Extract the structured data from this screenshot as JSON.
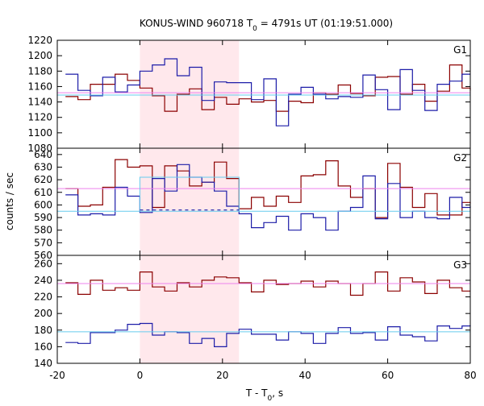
{
  "title": {
    "main": "KONUS-WIND 960718 T",
    "sub": "0",
    "rest": " = 4791s UT (01:19:51.000)"
  },
  "xlabel": {
    "main": "T - T",
    "sub": "0",
    "rest": ", s"
  },
  "ylabel": "counts / sec",
  "colors": {
    "series_red": "#8b0000",
    "series_blue": "#1c1ca8",
    "bg_red": "#ee82ee",
    "bg_blue": "#66ccee",
    "highlight": "#ffe8ec",
    "burst_bg": "#66ccee"
  },
  "chart_data": {
    "type": "line",
    "step": "post",
    "bin_edges": [
      -18,
      -15,
      -12,
      -9,
      -6,
      -3,
      0,
      3,
      6,
      9,
      12,
      15,
      18,
      21,
      24,
      27,
      30,
      33,
      36,
      39,
      42,
      45,
      48,
      51,
      54,
      57,
      60,
      63,
      66,
      69,
      72,
      75,
      78,
      80
    ],
    "xlim": [
      -20,
      80
    ],
    "xticks": [
      -20,
      0,
      20,
      40,
      60,
      80
    ],
    "highlight_interval": [
      0,
      24
    ],
    "panels": [
      {
        "label": "G1",
        "ylim": [
          1080,
          1220
        ],
        "yticks": [
          1080,
          1100,
          1120,
          1140,
          1160,
          1180,
          1200,
          1220
        ],
        "series": [
          {
            "color_key": "series_red",
            "values": [
              1147,
              1143,
              1163,
              1163,
              1176,
              1168,
              1158,
              1148,
              1128,
              1150,
              1157,
              1130,
              1146,
              1137,
              1144,
              1140,
              1142,
              1128,
              1141,
              1139,
              1152,
              1150,
              1162,
              1151,
              1148,
              1172,
              1173,
              1150,
              1163,
              1141,
              1154,
              1188,
              1158,
              1155
            ]
          },
          {
            "color_key": "series_blue",
            "values": [
              1176,
              1155,
              1148,
              1172,
              1153,
              1162,
              1180,
              1188,
              1196,
              1174,
              1185,
              1142,
              1166,
              1165,
              1165,
              1143,
              1170,
              1109,
              1150,
              1159,
              1150,
              1144,
              1147,
              1146,
              1175,
              1156,
              1130,
              1182,
              1155,
              1129,
              1163,
              1167,
              1176,
              1176
            ]
          }
        ],
        "bg_lines": [
          {
            "color_key": "bg_red",
            "value": 1152
          },
          {
            "color_key": "bg_blue",
            "value": 1149
          }
        ]
      },
      {
        "label": "G2",
        "ylim": [
          560,
          645
        ],
        "yticks": [
          560,
          570,
          580,
          590,
          600,
          610,
          620,
          630,
          640
        ],
        "series": [
          {
            "color_key": "series_red",
            "values": [
              613,
              599,
              600,
              614,
              636,
              630,
              631,
              598,
              631,
              627,
              615,
              618,
              634,
              621,
              597,
              606,
              599,
              607,
              602,
              623,
              624,
              635,
              615,
              606,
              613,
              590,
              633,
              614,
              598,
              609,
              592,
              592,
              602,
              601
            ]
          },
          {
            "color_key": "series_blue",
            "values": [
              608,
              592,
              593,
              592,
              614,
              607,
              594,
              621,
              611,
              632,
              622,
              618,
              611,
              599,
              593,
              582,
              586,
              591,
              580,
              593,
              590,
              580,
              595,
              598,
              623,
              589,
              617,
              590,
              595,
              590,
              589,
              606,
              598,
              599
            ]
          }
        ],
        "bg_lines": [
          {
            "color_key": "bg_red",
            "value": 613
          },
          {
            "color_key": "bg_blue",
            "value": 595
          }
        ],
        "burst_box": {
          "color_key": "burst_bg",
          "value": 622,
          "x": [
            0,
            24
          ]
        },
        "dashed": {
          "color_key": "series_blue",
          "value": 596,
          "x": [
            0,
            24
          ]
        }
      },
      {
        "label": "G3",
        "ylim": [
          140,
          270
        ],
        "yticks": [
          140,
          160,
          180,
          200,
          220,
          240,
          260
        ],
        "series": [
          {
            "color_key": "series_red",
            "values": [
              237,
              223,
              240,
              228,
              231,
              228,
              250,
              232,
              227,
              237,
              232,
              240,
              244,
              243,
              237,
              226,
              240,
              235,
              236,
              239,
              232,
              239,
              236,
              222,
              236,
              250,
              227,
              243,
              238,
              224,
              240,
              231,
              227,
              227
            ]
          },
          {
            "color_key": "series_blue",
            "values": [
              165,
              164,
              177,
              177,
              180,
              187,
              188,
              174,
              178,
              177,
              164,
              170,
              160,
              176,
              181,
              175,
              175,
              168,
              178,
              176,
              164,
              176,
              183,
              176,
              177,
              168,
              184,
              174,
              172,
              167,
              185,
              182,
              185,
              186
            ]
          }
        ],
        "bg_lines": [
          {
            "color_key": "bg_red",
            "value": 236
          },
          {
            "color_key": "bg_blue",
            "value": 178
          }
        ]
      }
    ]
  }
}
